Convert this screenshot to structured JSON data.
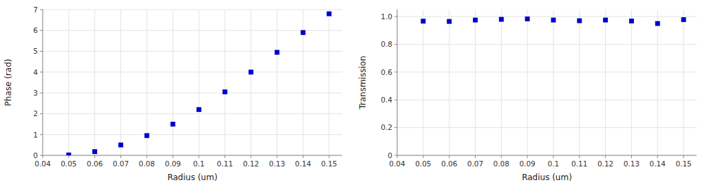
{
  "chart_data": [
    {
      "type": "scatter",
      "x": [
        0.05,
        0.06,
        0.07,
        0.08,
        0.09,
        0.1,
        0.11,
        0.12,
        0.13,
        0.14,
        0.15
      ],
      "values": [
        0.02,
        0.18,
        0.5,
        0.95,
        1.5,
        2.2,
        3.05,
        4.0,
        4.95,
        5.9,
        6.8
      ],
      "color": "#0000cc",
      "marker": "square",
      "xlabel": "Radius (um)",
      "ylabel": "Phase (rad)",
      "xlim": [
        0.04,
        0.155
      ],
      "ylim": [
        0,
        7
      ],
      "xticks": [
        0.04,
        0.05,
        0.06,
        0.07,
        0.08,
        0.09,
        0.1,
        0.11,
        0.12,
        0.13,
        0.14,
        0.15
      ],
      "yticks": [
        0,
        1,
        2,
        3,
        4,
        5,
        6,
        7
      ],
      "grid": true
    },
    {
      "type": "scatter",
      "x": [
        0.05,
        0.06,
        0.07,
        0.08,
        0.09,
        0.1,
        0.11,
        0.12,
        0.13,
        0.14,
        0.15
      ],
      "values": [
        0.967,
        0.965,
        0.975,
        0.98,
        0.983,
        0.975,
        0.97,
        0.975,
        0.968,
        0.95,
        0.978
      ],
      "color": "#0000cc",
      "marker": "square",
      "xlabel": "Radius (um)",
      "ylabel": "Transmission",
      "xlim": [
        0.04,
        0.155
      ],
      "ylim": [
        0,
        1.05
      ],
      "xticks": [
        0.04,
        0.05,
        0.06,
        0.07,
        0.08,
        0.09,
        0.1,
        0.11,
        0.12,
        0.13,
        0.14,
        0.15
      ],
      "yticks": [
        0,
        0.2,
        0.4,
        0.6,
        0.8,
        {
          "value": 1,
          "label": "1.0"
        }
      ],
      "grid": true
    }
  ]
}
